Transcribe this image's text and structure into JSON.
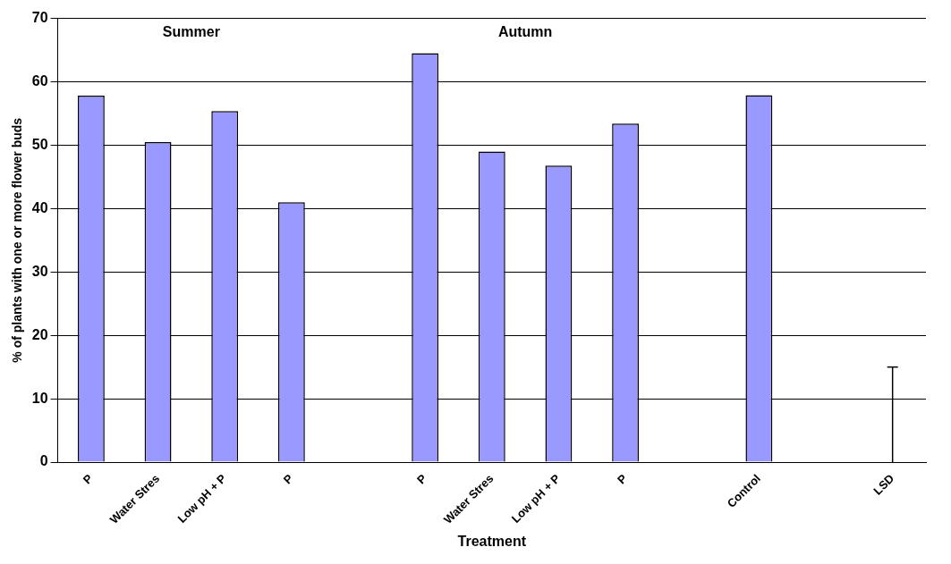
{
  "chart_data": {
    "type": "bar",
    "xlabel": "Treatment",
    "ylabel": "% of plants with one or more flower buds",
    "categories": [
      "P",
      "Water Stres",
      "Low pH + P",
      "P",
      null,
      "P",
      "Water Stres",
      "Low pH + P",
      "P",
      null,
      "Control",
      null,
      "LSD"
    ],
    "values": [
      57.8,
      50.5,
      55.4,
      41.0,
      null,
      64.5,
      49.0,
      46.8,
      53.4,
      null,
      57.9,
      null,
      0
    ],
    "errors": [
      null,
      null,
      null,
      null,
      null,
      null,
      null,
      null,
      null,
      null,
      null,
      null,
      [
        0,
        15
      ]
    ],
    "color": "#9999ff",
    "ylim": [
      0,
      70
    ],
    "yticks": [
      0,
      10,
      20,
      30,
      40,
      50,
      60,
      70
    ],
    "grid": "y",
    "legend": false,
    "annotations": [
      "Summer",
      "Autumn"
    ]
  }
}
